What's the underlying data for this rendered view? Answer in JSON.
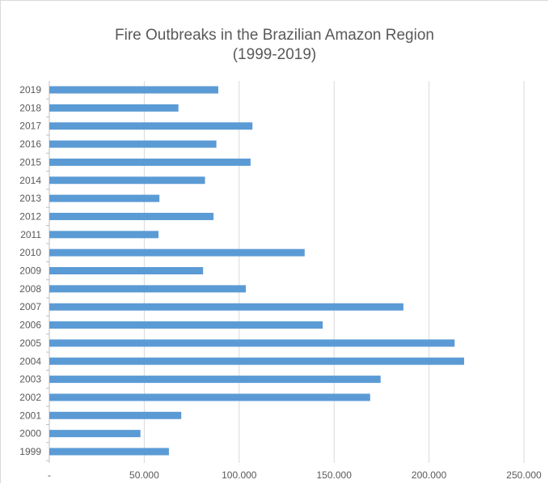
{
  "chart_data": {
    "type": "bar",
    "orientation": "horizontal",
    "title": "Fire Outbreaks in the Brazilian Amazon Region",
    "subtitle": "(1999-2019)",
    "categories": [
      "2019",
      "2018",
      "2017",
      "2016",
      "2015",
      "2014",
      "2013",
      "2012",
      "2011",
      "2010",
      "2009",
      "2008",
      "2007",
      "2006",
      "2005",
      "2004",
      "2003",
      "2002",
      "2001",
      "2000",
      "1999"
    ],
    "values": [
      89000,
      68000,
      107000,
      88000,
      106000,
      82000,
      58000,
      86500,
      57500,
      134500,
      81000,
      103500,
      186500,
      144000,
      213500,
      218500,
      174500,
      169000,
      69500,
      48000,
      63000
    ],
    "x_tick_labels": [
      "-",
      "50.000",
      "100.000",
      "150.000",
      "200.000",
      "250.000"
    ],
    "x_ticks": [
      0,
      50000,
      100000,
      150000,
      200000,
      250000
    ],
    "xlim": [
      0,
      250000
    ],
    "grid": true,
    "bar_color": "#5b9bd5"
  }
}
